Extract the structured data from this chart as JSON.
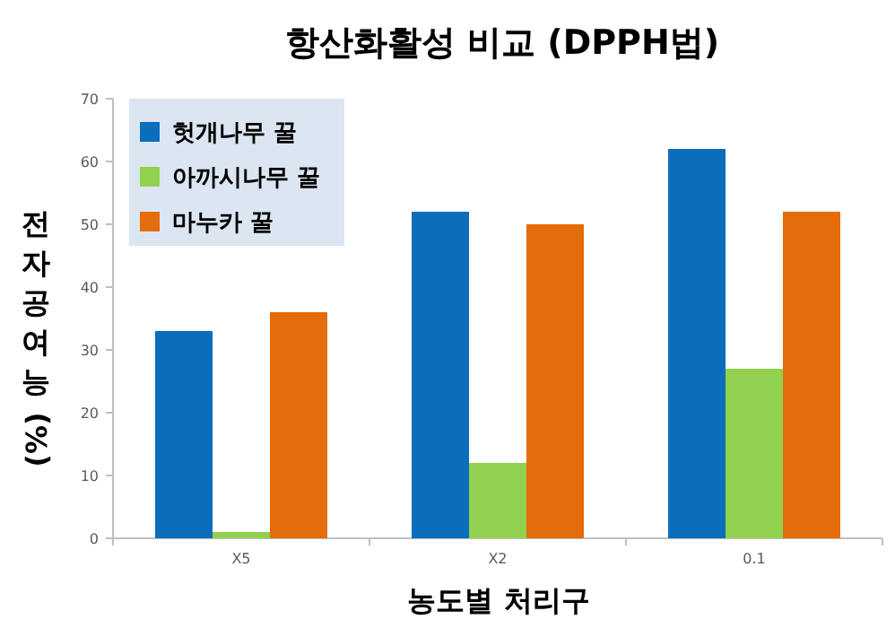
{
  "chart_data": {
    "type": "bar",
    "title": "항산화활성 비교 (DPPH법)",
    "xlabel": "농도별 처리구",
    "ylabel": "전자공여능 (%)",
    "categories": [
      "X5",
      "X2",
      "0.1"
    ],
    "series": [
      {
        "name": "헛개나무 꿀",
        "color": "#0a6ebd",
        "values": [
          33,
          52,
          62
        ]
      },
      {
        "name": "아까시나무 꿀",
        "color": "#92d050",
        "values": [
          1,
          12,
          27
        ]
      },
      {
        "name": "마누카 꿀",
        "color": "#e46c0a",
        "values": [
          36,
          50,
          52
        ]
      }
    ],
    "ylim": [
      0,
      70
    ],
    "yticks": [
      0,
      10,
      20,
      30,
      40,
      50,
      60,
      70
    ],
    "legend": "top left"
  }
}
